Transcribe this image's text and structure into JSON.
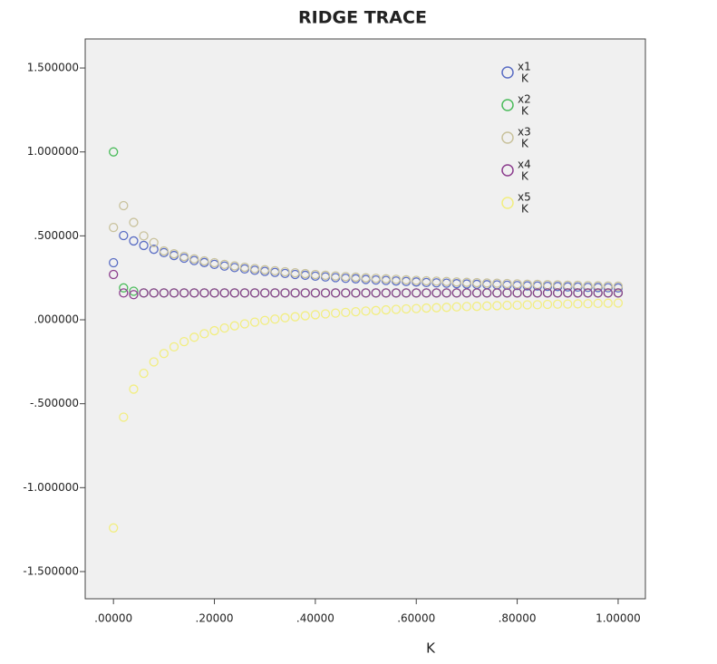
{
  "chart_data": {
    "type": "scatter",
    "title": "RIDGE TRACE",
    "x_label": "K",
    "x": [
      0,
      0.02,
      0.04,
      0.06,
      0.08,
      0.1,
      0.12,
      0.14,
      0.16,
      0.18,
      0.2,
      0.22,
      0.24,
      0.26,
      0.28,
      0.3,
      0.32,
      0.34,
      0.36,
      0.38,
      0.4,
      0.42,
      0.44,
      0.46,
      0.48,
      0.5,
      0.52,
      0.54,
      0.56,
      0.58,
      0.6,
      0.62,
      0.64,
      0.66,
      0.68,
      0.7,
      0.72,
      0.74,
      0.76,
      0.78,
      0.8,
      0.82,
      0.84,
      0.86,
      0.88,
      0.9,
      0.92,
      0.94,
      0.96,
      0.98,
      1
    ],
    "series": [
      {
        "name": "x1",
        "sublabel": "K",
        "color": "#5b6ec4",
        "values": [
          0.34,
          0.502,
          0.47,
          0.443,
          0.42,
          0.4,
          0.383,
          0.367,
          0.353,
          0.341,
          0.33,
          0.32,
          0.311,
          0.303,
          0.295,
          0.288,
          0.282,
          0.276,
          0.27,
          0.265,
          0.26,
          0.255,
          0.251,
          0.247,
          0.244,
          0.24,
          0.237,
          0.234,
          0.231,
          0.228,
          0.225,
          0.222,
          0.22,
          0.218,
          0.215,
          0.213,
          0.211,
          0.209,
          0.208,
          0.206,
          0.204,
          0.202,
          0.201,
          0.199,
          0.198,
          0.196,
          0.195,
          0.193,
          0.192,
          0.191,
          0.19
        ]
      },
      {
        "name": "x2",
        "sublabel": "K",
        "color": "#4cbc5c",
        "values": [
          1.0,
          0.19,
          0.17,
          0.16,
          0.16,
          0.16,
          0.16,
          0.16,
          0.16,
          0.16,
          0.16,
          0.16,
          0.16,
          0.16,
          0.16,
          0.16,
          0.16,
          0.16,
          0.16,
          0.16,
          0.16,
          0.16,
          0.16,
          0.16,
          0.16,
          0.16,
          0.16,
          0.16,
          0.16,
          0.16,
          0.16,
          0.16,
          0.16,
          0.16,
          0.16,
          0.16,
          0.16,
          0.16,
          0.16,
          0.16,
          0.16,
          0.16,
          0.16,
          0.16,
          0.16,
          0.16,
          0.16,
          0.16,
          0.16,
          0.16,
          0.16
        ]
      },
      {
        "name": "x3",
        "sublabel": "K",
        "color": "#c9c29c",
        "values": [
          0.55,
          0.68,
          0.58,
          0.5,
          0.46,
          0.41,
          0.393,
          0.377,
          0.363,
          0.351,
          0.34,
          0.33,
          0.321,
          0.313,
          0.305,
          0.298,
          0.292,
          0.286,
          0.28,
          0.275,
          0.27,
          0.265,
          0.261,
          0.257,
          0.254,
          0.25,
          0.247,
          0.244,
          0.241,
          0.238,
          0.235,
          0.232,
          0.23,
          0.228,
          0.225,
          0.223,
          0.221,
          0.219,
          0.218,
          0.216,
          0.214,
          0.212,
          0.211,
          0.209,
          0.208,
          0.206,
          0.205,
          0.203,
          0.202,
          0.201,
          0.2
        ]
      },
      {
        "name": "x4",
        "sublabel": "K",
        "color": "#8c3e8e",
        "values": [
          0.27,
          0.16,
          0.15,
          0.16,
          0.16,
          0.16,
          0.16,
          0.16,
          0.16,
          0.16,
          0.16,
          0.16,
          0.16,
          0.16,
          0.16,
          0.16,
          0.16,
          0.16,
          0.16,
          0.16,
          0.16,
          0.16,
          0.16,
          0.16,
          0.16,
          0.16,
          0.16,
          0.16,
          0.16,
          0.16,
          0.16,
          0.16,
          0.16,
          0.16,
          0.16,
          0.16,
          0.16,
          0.16,
          0.16,
          0.16,
          0.16,
          0.16,
          0.16,
          0.16,
          0.16,
          0.16,
          0.16,
          0.16,
          0.16,
          0.16,
          0.16
        ]
      },
      {
        "name": "x5",
        "sublabel": "K",
        "color": "#f2ee80",
        "values": [
          -1.24,
          -0.58,
          -0.413,
          -0.319,
          -0.251,
          -0.201,
          -0.161,
          -0.13,
          -0.104,
          -0.083,
          -0.065,
          -0.049,
          -0.036,
          -0.024,
          -0.014,
          -0.004,
          0.004,
          0.012,
          0.018,
          0.024,
          0.03,
          0.035,
          0.04,
          0.044,
          0.048,
          0.052,
          0.055,
          0.059,
          0.062,
          0.065,
          0.067,
          0.07,
          0.072,
          0.074,
          0.077,
          0.079,
          0.08,
          0.082,
          0.084,
          0.086,
          0.087,
          0.089,
          0.09,
          0.092,
          0.093,
          0.094,
          0.095,
          0.096,
          0.098,
          0.099,
          0.1
        ]
      }
    ],
    "xlim": [
      -0.056,
      1.054
    ],
    "xticks": [
      {
        "value": 0,
        "label": ".00000"
      },
      {
        "value": 0.2,
        "label": ".20000"
      },
      {
        "value": 0.4,
        "label": ".40000"
      },
      {
        "value": 0.6,
        "label": ".60000"
      },
      {
        "value": 0.8,
        "label": ".80000"
      },
      {
        "value": 1,
        "label": "1.00000"
      }
    ],
    "ylim": [
      -1.662,
      1.673
    ],
    "yticks": [
      {
        "value": -1.5,
        "label": "-1.500000"
      },
      {
        "value": -1,
        "label": "-1.000000"
      },
      {
        "value": -0.5,
        "label": "-.500000"
      },
      {
        "value": 0,
        "label": ".000000"
      },
      {
        "value": 0.5,
        "label": ".500000"
      },
      {
        "value": 1,
        "label": "1.000000"
      },
      {
        "value": 1.5,
        "label": "1.500000"
      }
    ],
    "legend": "top-right"
  }
}
